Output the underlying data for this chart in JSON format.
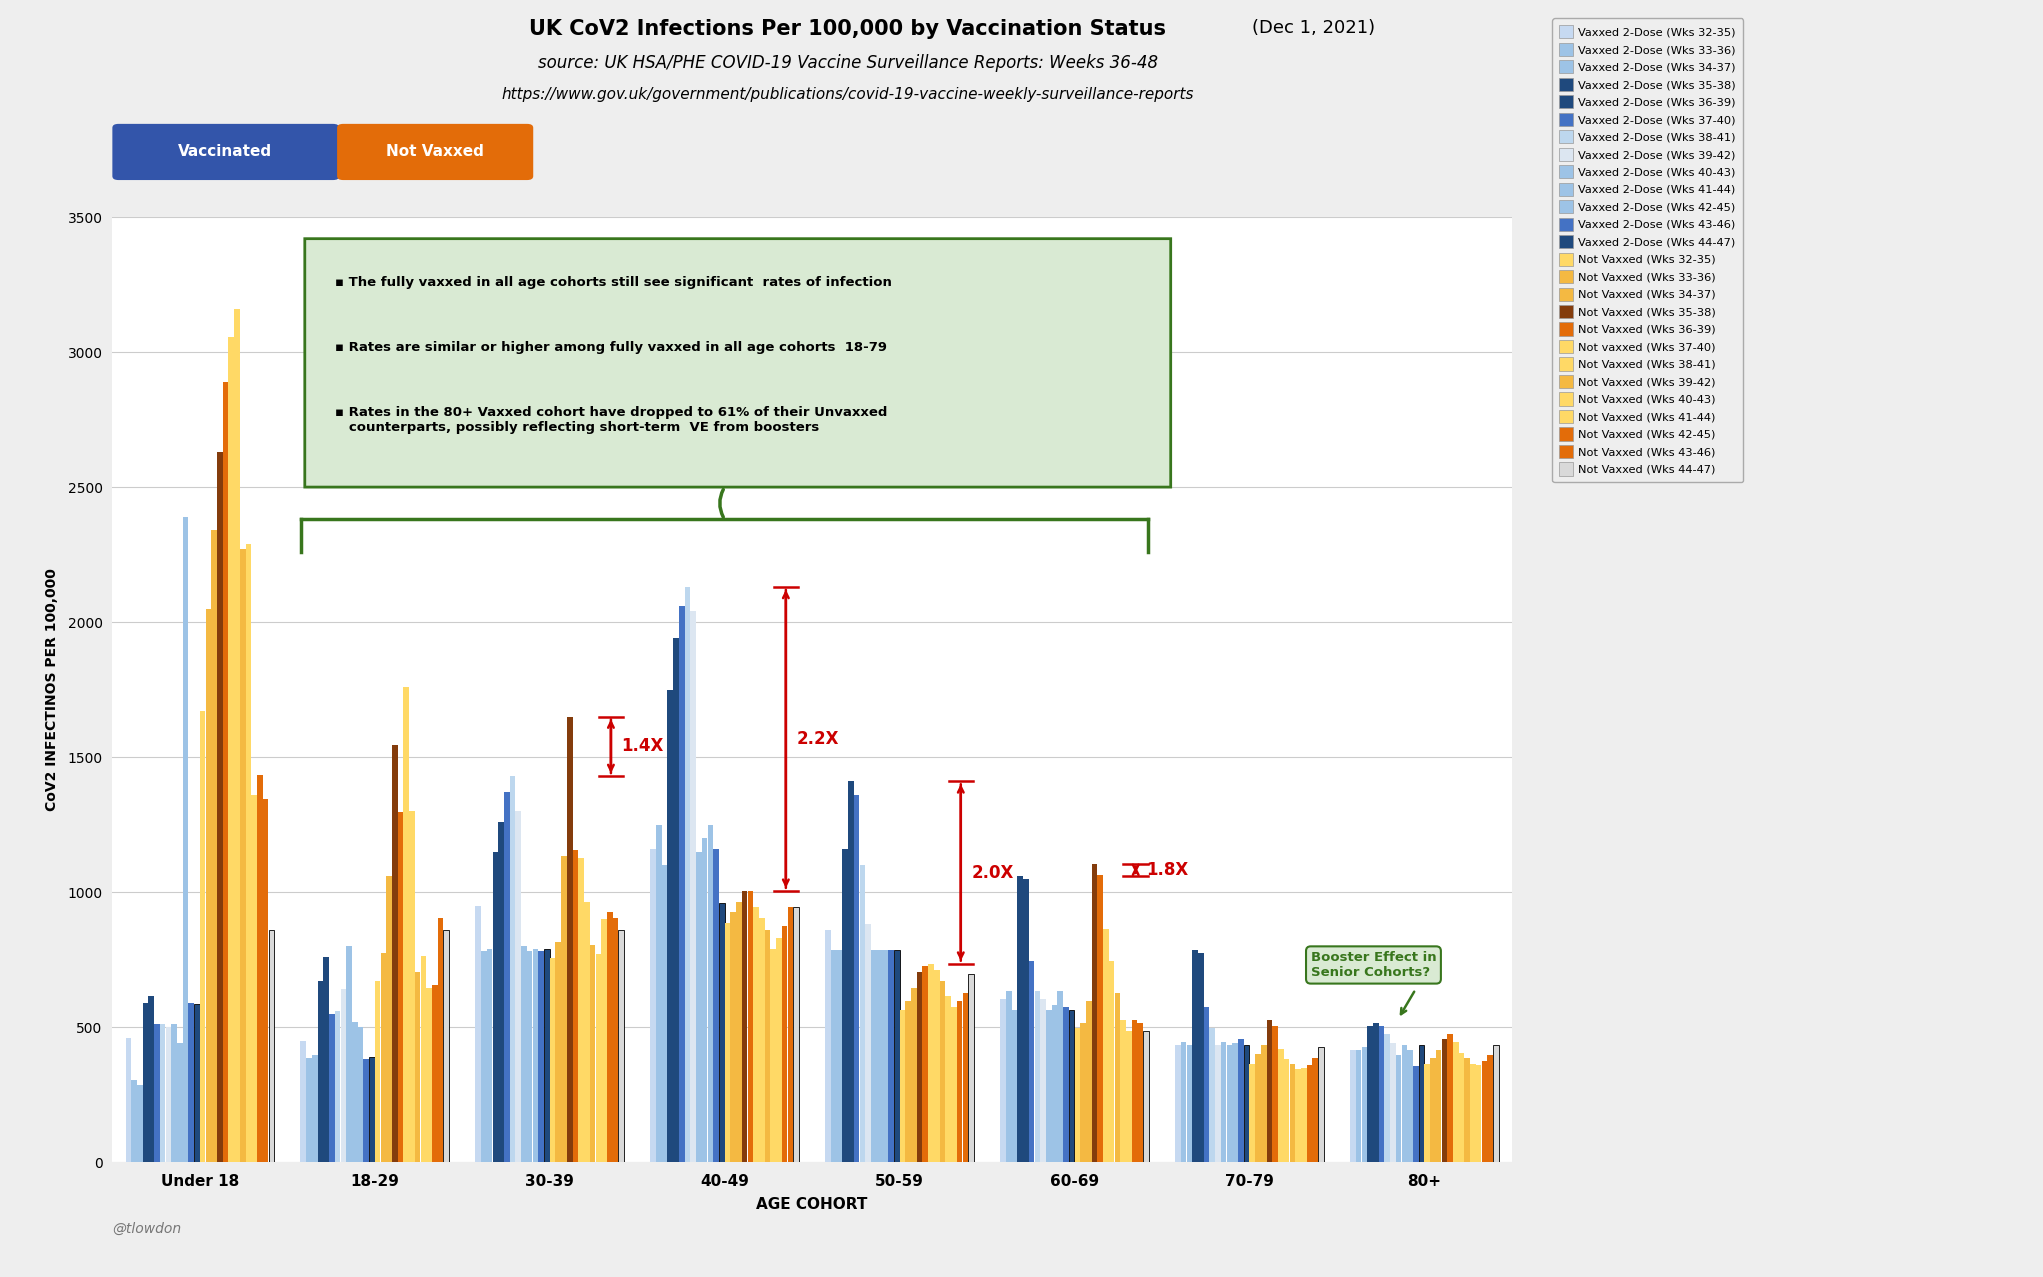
{
  "title_main": "UK CoV2 Infections Per 100,000 by Vaccination Status",
  "title_date": "(Dec 1, 2021)",
  "title_source": "source: UK HSA/PHE COVID-19 Vaccine Surveillance Reports: Weeks 36-48",
  "title_url": "https://www.gov.uk/government/publications/covid-19-vaccine-weekly-surveillance-reports",
  "xlabel": "AGE COHORT",
  "ylabel": "CoV2 INFECTINOS PER 100,000",
  "watermark": "@tlowdon",
  "age_groups": [
    "Under 18",
    "18-29",
    "30-39",
    "40-49",
    "50-59",
    "60-69",
    "70-79",
    "80+"
  ],
  "vaxxed_labels": [
    "Vaxxed 2-Dose (Wks 32-35)",
    "Vaxxed 2-Dose (Wks 33-36)",
    "Vaxxed 2-Dose (Wks 34-37)",
    "Vaxxed 2-Dose (Wks 35-38)",
    "Vaxxed 2-Dose (Wks 36-39)",
    "Vaxxed 2-Dose (Wks 37-40)",
    "Vaxxed 2-Dose (Wks 38-41)",
    "Vaxxed 2-Dose (Wks 39-42)",
    "Vaxxed 2-Dose (Wks 40-43)",
    "Vaxxed 2-Dose (Wks 41-44)",
    "Vaxxed 2-Dose (Wks 42-45)",
    "Vaxxed 2-Dose (Wks 43-46)",
    "Vaxxed 2-Dose (Wks 44-47)"
  ],
  "notvaxxed_labels": [
    "Not Vaxxed (Wks 32-35)",
    "Not Vaxxed (Wks 33-36)",
    "Not Vaxxed (Wks 34-37)",
    "Not Vaxxed (Wks 35-38)",
    "Not Vaxxed (Wks 36-39)",
    "Not vaxxed (Wks 37-40)",
    "Not Vaxxed (Wks 38-41)",
    "Not Vaxxed (Wks 39-42)",
    "Not Vaxxed (Wks 40-43)",
    "Not Vaxxed (Wks 41-44)",
    "Not Vaxxed (Wks 42-45)",
    "Not Vaxxed (Wks 43-46)",
    "Not Vaxxed (Wks 44-47)"
  ],
  "vaxxed_colors": [
    "#c6d9f1",
    "#9dc3e6",
    "#9dc3e6",
    "#1f497d",
    "#1f497d",
    "#4472c4",
    "#bdd7ee",
    "#dce6f1",
    "#9dc3e6",
    "#9dc3e6",
    "#9dc3e6",
    "#4472c4",
    "#1f497d"
  ],
  "notvaxxed_colors": [
    "#ffd966",
    "#f4b942",
    "#f4b942",
    "#843c0c",
    "#e36c09",
    "#ffd966",
    "#ffd966",
    "#f4b942",
    "#ffd966",
    "#ffd966",
    "#e36c09",
    "#e36c09",
    "#d9d9d9"
  ],
  "vaxxed_data": {
    "Under 18": [
      460,
      305,
      285,
      590,
      615,
      510,
      510,
      500,
      510,
      440,
      2390,
      590,
      585
    ],
    "18-29": [
      450,
      385,
      395,
      670,
      760,
      550,
      560,
      640,
      800,
      520,
      500,
      380,
      390
    ],
    "30-39": [
      950,
      780,
      790,
      1150,
      1260,
      1370,
      1430,
      1300,
      800,
      780,
      790,
      780,
      790
    ],
    "40-49": [
      1160,
      1250,
      1100,
      1750,
      1940,
      2060,
      2130,
      2040,
      1150,
      1200,
      1250,
      1160,
      960
    ],
    "50-59": [
      860,
      785,
      785,
      1160,
      1410,
      1360,
      1100,
      880,
      785,
      785,
      785,
      785,
      785
    ],
    "60-69": [
      605,
      635,
      565,
      1060,
      1050,
      745,
      635,
      605,
      565,
      580,
      635,
      575,
      565
    ],
    "70-79": [
      435,
      445,
      435,
      785,
      775,
      575,
      495,
      435,
      445,
      435,
      440,
      455,
      435
    ],
    "80+": [
      415,
      415,
      425,
      505,
      515,
      505,
      475,
      440,
      395,
      435,
      415,
      355,
      435
    ]
  },
  "notvaxxed_data": {
    "Under 18": [
      1670,
      2050,
      2340,
      2630,
      2890,
      3055,
      3160,
      2270,
      2290,
      1360,
      1435,
      1345,
      860
    ],
    "18-29": [
      670,
      775,
      1060,
      1545,
      1295,
      1760,
      1300,
      705,
      765,
      645,
      655,
      905,
      860
    ],
    "30-39": [
      755,
      815,
      1135,
      1650,
      1155,
      1125,
      965,
      805,
      770,
      900,
      925,
      905,
      860
    ],
    "40-49": [
      885,
      925,
      965,
      1005,
      1005,
      945,
      905,
      860,
      790,
      830,
      875,
      945,
      945
    ],
    "50-59": [
      565,
      595,
      645,
      705,
      725,
      735,
      710,
      670,
      615,
      575,
      595,
      625,
      695
    ],
    "60-69": [
      495,
      515,
      595,
      1105,
      1065,
      865,
      745,
      625,
      525,
      485,
      525,
      515,
      485
    ],
    "70-79": [
      365,
      400,
      435,
      525,
      505,
      420,
      380,
      365,
      345,
      350,
      360,
      385,
      425
    ],
    "80+": [
      365,
      385,
      415,
      455,
      475,
      445,
      405,
      385,
      365,
      360,
      375,
      395,
      435
    ]
  },
  "ylim": [
    0,
    3500
  ],
  "background_color": "#eeeeee",
  "plot_bg_color": "#ffffff",
  "annotation_box_color": "#d9ead3",
  "annotation_box_edge": "#38761d",
  "bracket_color": "#38761d",
  "ratio_color": "#cc0000",
  "booster_box_color": "#d9ead3",
  "booster_box_edge": "#38761d",
  "grid_color": "#cccccc"
}
